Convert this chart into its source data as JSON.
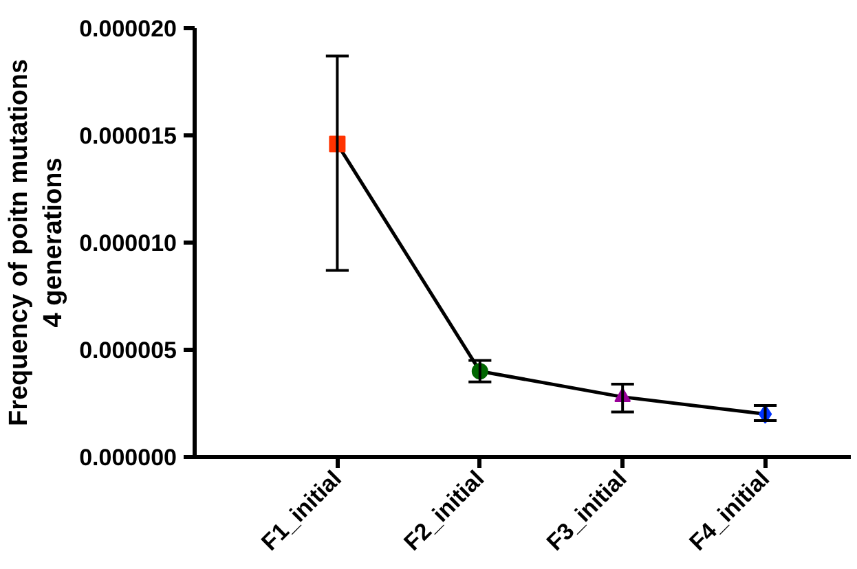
{
  "chart_data": {
    "type": "line",
    "ylabel": "Frequency of poitn mutations\n4 generations",
    "categories": [
      "F1_initial",
      "F2_initial",
      "F3_initial",
      "F4_initial"
    ],
    "series": [
      {
        "color": "#000000",
        "marker": "none",
        "values": [
          1.46e-05,
          4e-06,
          2.8e-06,
          2e-06
        ]
      },
      {
        "type": "scatter",
        "x": [
          "F1_initial"
        ],
        "values": [
          1.46e-05
        ],
        "color": "#ff3300",
        "marker": "square",
        "errors": [
          [
            8.7e-06,
            1.87e-05
          ]
        ]
      },
      {
        "type": "scatter",
        "x": [
          "F2_initial"
        ],
        "values": [
          4e-06
        ],
        "color": "#006600",
        "marker": "circle",
        "errors": [
          [
            3.5e-06,
            4.5e-06
          ]
        ]
      },
      {
        "type": "scatter",
        "x": [
          "F3_initial"
        ],
        "values": [
          2.8e-06
        ],
        "color": "#990099",
        "marker": "triangle",
        "errors": [
          [
            2.1e-06,
            3.4e-06
          ]
        ]
      },
      {
        "type": "scatter",
        "x": [
          "F4_initial"
        ],
        "values": [
          2e-06
        ],
        "color": "#0033ff",
        "marker": "diamond",
        "errors": [
          [
            1.7e-06,
            2.4e-06
          ]
        ]
      }
    ],
    "ylim": [
      0,
      2e-05
    ],
    "yticks": [
      {
        "value": 0,
        "label": "0.000000"
      },
      {
        "value": 5e-06,
        "label": "0.000005"
      },
      {
        "value": 1e-05,
        "label": "0.000010"
      },
      {
        "value": 1.5e-05,
        "label": "0.000015"
      },
      {
        "value": 2e-05,
        "label": "0.000020"
      }
    ],
    "grid": false
  }
}
